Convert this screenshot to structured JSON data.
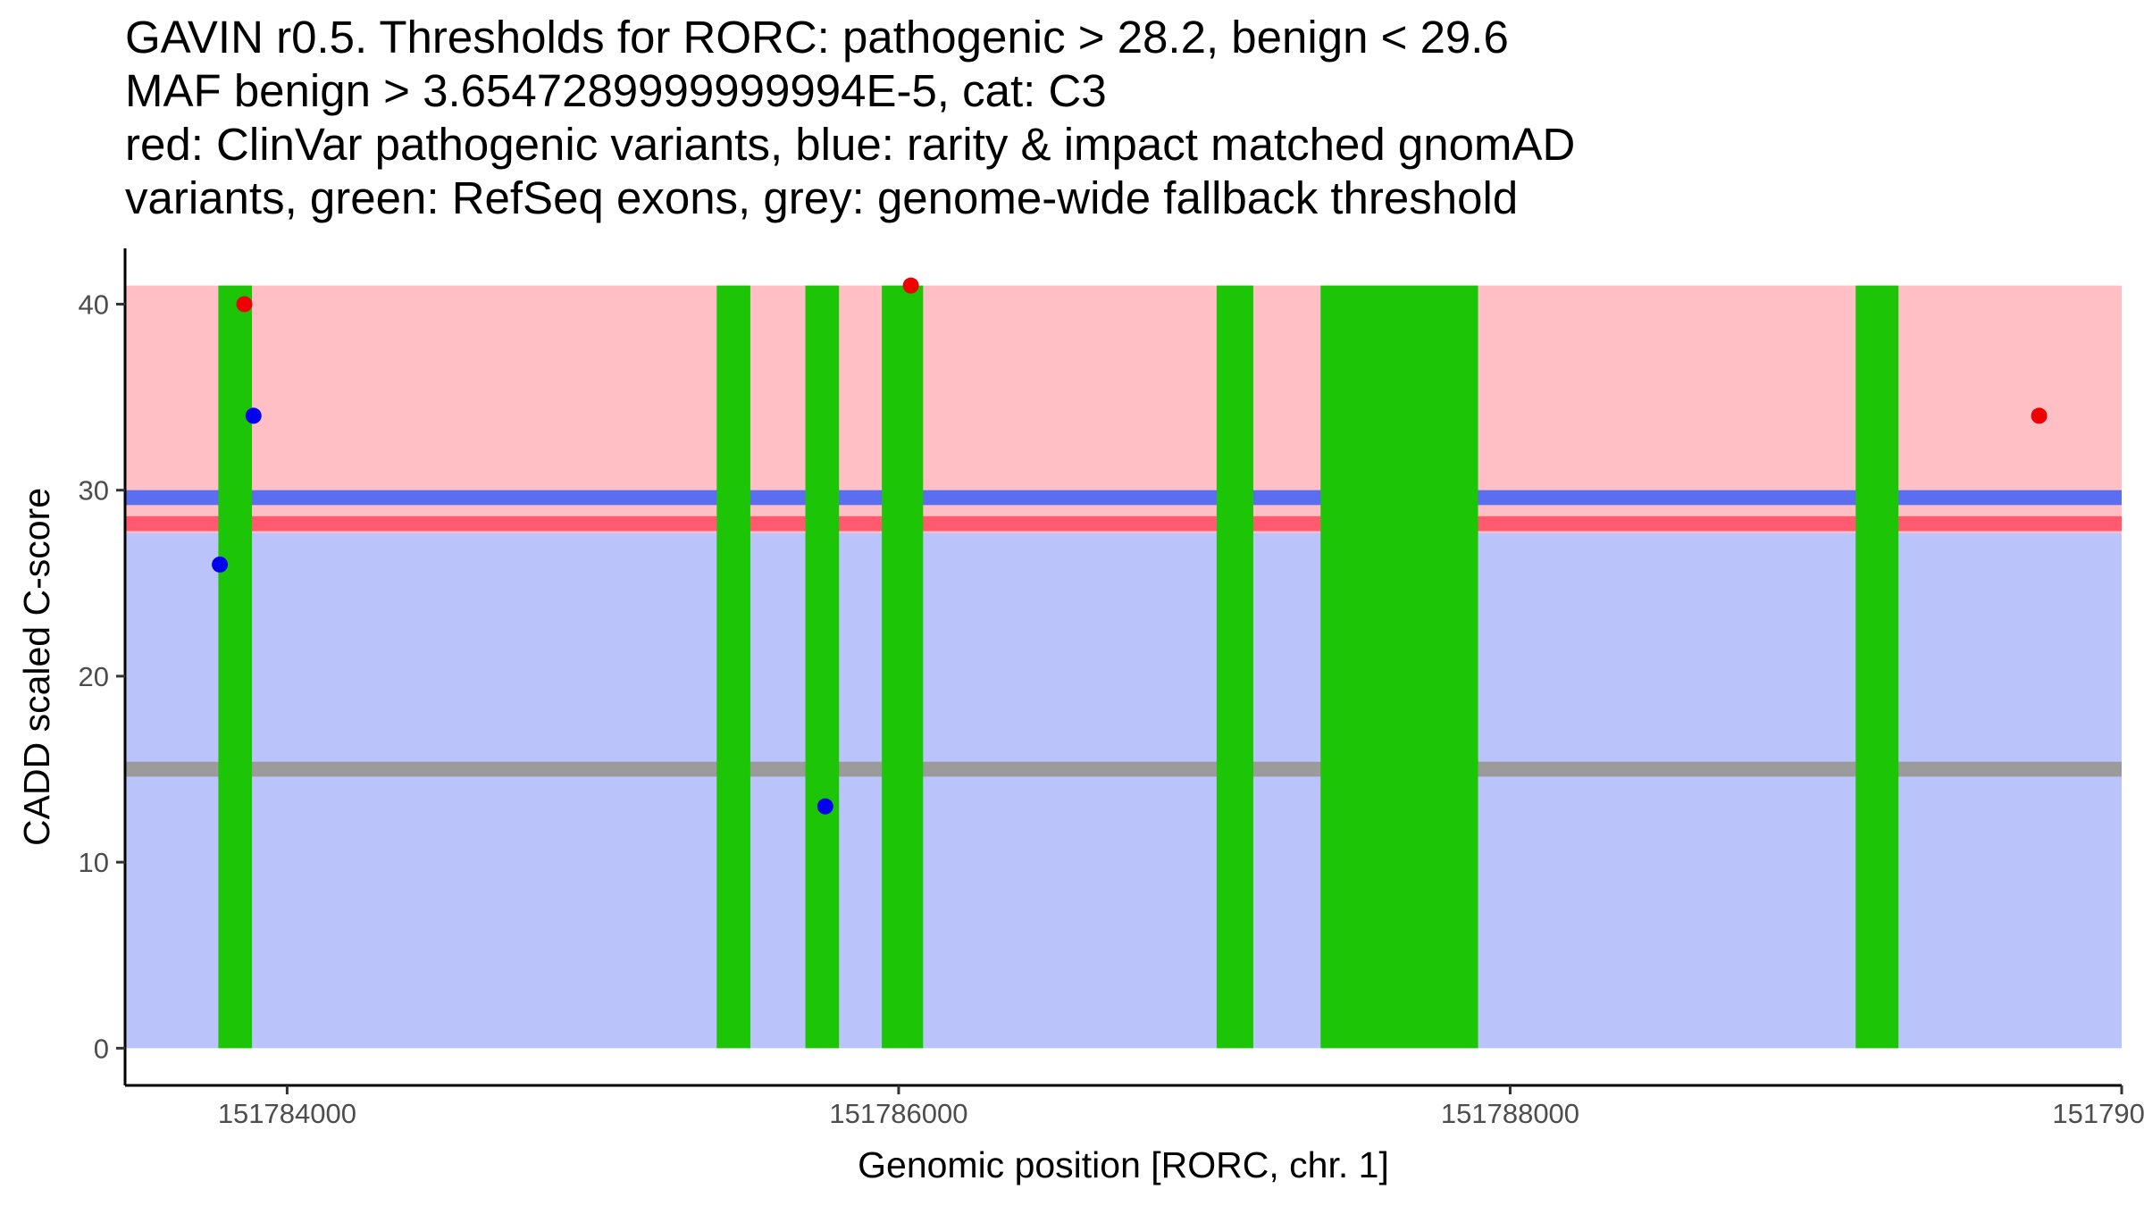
{
  "chart_data": {
    "type": "scatter",
    "title_lines": [
      "GAVIN r0.5. Thresholds for RORC: pathogenic > 28.2, benign < 29.6",
      "MAF benign > 3.6547289999999994E-5, cat: C3",
      "red: ClinVar pathogenic variants, blue: rarity & impact matched gnomAD",
      "variants, green: RefSeq exons, grey: genome-wide fallback threshold"
    ],
    "xlabel": "Genomic position [RORC, chr. 1]",
    "ylabel": "CADD scaled C-score",
    "xlim": [
      151783470,
      151790000
    ],
    "ylim": [
      -2,
      43
    ],
    "x_ticks": [
      {
        "value": 151784000,
        "label": "151784000"
      },
      {
        "value": 151786000,
        "label": "151786000"
      },
      {
        "value": 151788000,
        "label": "151788000"
      },
      {
        "value": 151790000,
        "label": "151790000"
      }
    ],
    "y_ticks": [
      {
        "value": 0,
        "label": "0"
      },
      {
        "value": 10,
        "label": "10"
      },
      {
        "value": 20,
        "label": "20"
      },
      {
        "value": 30,
        "label": "30"
      },
      {
        "value": 40,
        "label": "40"
      }
    ],
    "regions": [
      {
        "name": "benign-region",
        "y0": 0,
        "y1": 27.7,
        "color": "#bbc3fb"
      },
      {
        "name": "pathogenic-region",
        "y0": 30.2,
        "y1": 41,
        "color": "#ffbfc5"
      },
      {
        "name": "gap-region",
        "y0": 27.7,
        "y1": 30.2,
        "color": "#ffbfc5"
      }
    ],
    "threshold_bands": [
      {
        "name": "gavin-pathogenic-threshold",
        "label": "pathogenic > 28.2",
        "value": 28.2,
        "y0": 27.8,
        "y1": 28.6,
        "color": "#ff5a6e"
      },
      {
        "name": "gavin-benign-threshold",
        "label": "benign < 29.6",
        "value": 29.6,
        "y0": 29.2,
        "y1": 30.0,
        "color": "#5b6ef2"
      },
      {
        "name": "genome-wide-fallback-threshold",
        "label": "genome-wide fallback",
        "value": 15,
        "y0": 14.6,
        "y1": 15.4,
        "color": "#9b9b9b"
      }
    ],
    "exons": [
      {
        "start": 151783775,
        "end": 151783885
      },
      {
        "start": 151785405,
        "end": 151785515
      },
      {
        "start": 151785695,
        "end": 151785805
      },
      {
        "start": 151785945,
        "end": 151786080
      },
      {
        "start": 151787040,
        "end": 151787160
      },
      {
        "start": 151787380,
        "end": 151787895
      },
      {
        "start": 151789130,
        "end": 151789270
      }
    ],
    "exon_color": "#1cc607",
    "exon_y_range": [
      0,
      41
    ],
    "series": [
      {
        "name": "ClinVar pathogenic variants",
        "color": "#ee0000",
        "points": [
          {
            "x": 151783860,
            "y": 40
          },
          {
            "x": 151786040,
            "y": 41
          },
          {
            "x": 151789730,
            "y": 34
          }
        ]
      },
      {
        "name": "rarity & impact matched gnomAD variants",
        "color": "#0000ee",
        "points": [
          {
            "x": 151783890,
            "y": 34
          },
          {
            "x": 151783780,
            "y": 26
          },
          {
            "x": 151785760,
            "y": 13
          }
        ]
      }
    ]
  }
}
